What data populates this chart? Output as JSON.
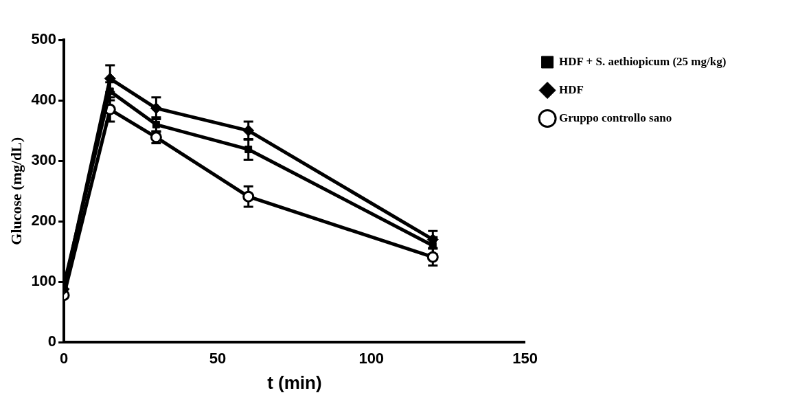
{
  "chart_data": {
    "type": "line",
    "xlabel": "t (min)",
    "ylabel": "Glucose (mg/dL)",
    "x": [
      0,
      15,
      30,
      60,
      120
    ],
    "xlim": [
      0,
      150
    ],
    "xticks": [
      0,
      50,
      100,
      150
    ],
    "ylim": [
      0,
      500
    ],
    "yticks": [
      0,
      100,
      200,
      300,
      400,
      500
    ],
    "grid": false,
    "legend": "top right",
    "line_style": "solid",
    "series": [
      {
        "name": "HDF + S. aethiopicum (25 mg/kg)",
        "color": "#000000",
        "marker": "square",
        "values": [
          95,
          415,
          360,
          319,
          160
        ],
        "errors": [
          null,
          15,
          12,
          17,
          14
        ]
      },
      {
        "name": "HDF",
        "color": "#000000",
        "marker": "diamond",
        "values": [
          88,
          436,
          387,
          350,
          170
        ],
        "errors": [
          null,
          22,
          18,
          15,
          14
        ]
      },
      {
        "name": "Gruppo controllo sano",
        "color": "#000000",
        "marker": "circle",
        "values": [
          78,
          385,
          339,
          241,
          141
        ],
        "errors": [
          null,
          20,
          10,
          17,
          14
        ]
      }
    ]
  }
}
